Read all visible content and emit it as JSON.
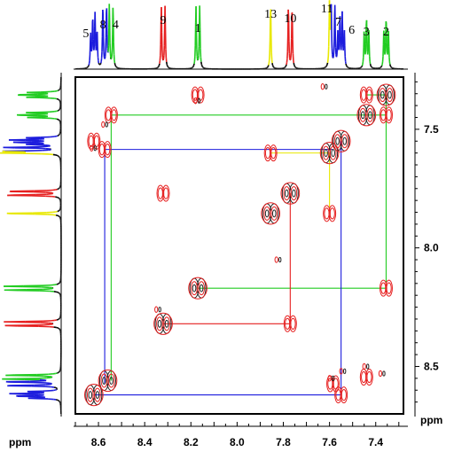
{
  "chart_data": {
    "type": "2d-nmr-cosy",
    "x_axis": {
      "label": "ppm",
      "range": [
        8.7,
        7.28
      ],
      "ticks": [
        8.6,
        8.4,
        8.2,
        8.0,
        7.8,
        7.6,
        7.4
      ],
      "tick_labels": [
        "8.6",
        "8.4",
        "8.2",
        "8.0",
        "7.8",
        "7.6",
        "7.4"
      ]
    },
    "y_axis": {
      "label": "ppm",
      "range": [
        7.28,
        8.7
      ],
      "ticks": [
        7.5,
        8.0,
        8.5
      ],
      "tick_labels": [
        "7.5",
        "8.0",
        "8.5"
      ]
    },
    "colors": {
      "green": "#22cc22",
      "red": "#e62020",
      "blue": "#1c1cdd",
      "yellow": "#e8e800",
      "black": "#222222"
    },
    "peaks": [
      {
        "label": "5",
        "ppm": 8.62,
        "color": "blue",
        "shape": "multiplet"
      },
      {
        "label": "8",
        "ppm": 8.573,
        "color": "blue",
        "shape": "doublet"
      },
      {
        "label": "4",
        "ppm": 8.545,
        "color": "green",
        "shape": "doublet"
      },
      {
        "label": "9",
        "ppm": 8.32,
        "color": "red",
        "shape": "doublet"
      },
      {
        "label": "1",
        "ppm": 8.17,
        "color": "green",
        "shape": "doublet"
      },
      {
        "label": "13",
        "ppm": 7.855,
        "color": "yellow",
        "shape": "singlet"
      },
      {
        "label": "10",
        "ppm": 7.77,
        "color": "red",
        "shape": "doublet"
      },
      {
        "label": "11",
        "ppm": 7.6,
        "color": "yellow",
        "shape": "singlet"
      },
      {
        "label": "7",
        "ppm": 7.585,
        "color": "blue",
        "shape": "doublet"
      },
      {
        "label": "6",
        "ppm": 7.55,
        "color": "blue",
        "shape": "multiplet"
      },
      {
        "label": "3",
        "ppm": 7.44,
        "color": "green",
        "shape": "triplet"
      },
      {
        "label": "2",
        "ppm": 7.355,
        "color": "green",
        "shape": "triplet"
      }
    ],
    "diagonal_peaks": [
      8.62,
      8.56,
      8.32,
      8.17,
      7.855,
      7.77,
      7.6,
      7.55,
      7.44,
      7.355
    ],
    "cross_peak_pairs": [
      {
        "a": 8.17,
        "b": 7.355,
        "color": "green"
      },
      {
        "a": 7.44,
        "b": 7.355,
        "color": "green"
      },
      {
        "a": 8.545,
        "b": 7.44,
        "color": "green"
      },
      {
        "a": 8.32,
        "b": 7.77,
        "color": "red"
      },
      {
        "a": 8.62,
        "b": 7.55,
        "color": "blue"
      },
      {
        "a": 8.573,
        "b": 7.585,
        "color": "blue"
      },
      {
        "a": 7.855,
        "b": 7.6,
        "color": "yellow"
      }
    ],
    "correlation_lines": [
      {
        "color": "green",
        "x1": 8.545,
        "y1": 7.44,
        "x2": 7.355,
        "y2": 7.44
      },
      {
        "color": "green",
        "x1": 8.545,
        "y1": 7.44,
        "x2": 8.545,
        "y2": 8.56
      },
      {
        "color": "green",
        "x1": 7.355,
        "y1": 7.355,
        "x2": 7.355,
        "y2": 8.17
      },
      {
        "color": "green",
        "x1": 8.17,
        "y1": 8.17,
        "x2": 7.355,
        "y2": 8.17
      },
      {
        "color": "green",
        "x1": 7.44,
        "y1": 7.355,
        "x2": 7.355,
        "y2": 7.355
      },
      {
        "color": "blue",
        "x1": 8.573,
        "y1": 7.585,
        "x2": 7.585,
        "y2": 7.585
      },
      {
        "color": "blue",
        "x1": 8.573,
        "y1": 7.585,
        "x2": 8.573,
        "y2": 8.573
      },
      {
        "color": "blue",
        "x1": 8.62,
        "y1": 8.62,
        "x2": 7.55,
        "y2": 8.62
      },
      {
        "color": "blue",
        "x1": 7.55,
        "y1": 7.55,
        "x2": 7.55,
        "y2": 8.62
      },
      {
        "color": "red",
        "x1": 8.32,
        "y1": 8.32,
        "x2": 7.77,
        "y2": 8.32
      },
      {
        "color": "red",
        "x1": 7.77,
        "y1": 7.77,
        "x2": 7.77,
        "y2": 8.32
      },
      {
        "color": "yellow",
        "x1": 7.855,
        "y1": 7.6,
        "x2": 7.6,
        "y2": 7.6
      },
      {
        "color": "yellow",
        "x1": 7.6,
        "y1": 7.6,
        "x2": 7.6,
        "y2": 7.855
      }
    ],
    "artifact_peaks": [
      {
        "x": 8.18,
        "y": 7.38
      },
      {
        "x": 8.35,
        "y": 8.26
      },
      {
        "x": 7.45,
        "y": 8.5
      },
      {
        "x": 7.83,
        "y": 8.05
      },
      {
        "x": 8.63,
        "y": 7.58
      },
      {
        "x": 8.58,
        "y": 7.48
      },
      {
        "x": 7.6,
        "y": 8.55
      },
      {
        "x": 7.55,
        "y": 8.52
      },
      {
        "x": 7.63,
        "y": 7.32
      },
      {
        "x": 7.38,
        "y": 8.53
      }
    ]
  }
}
